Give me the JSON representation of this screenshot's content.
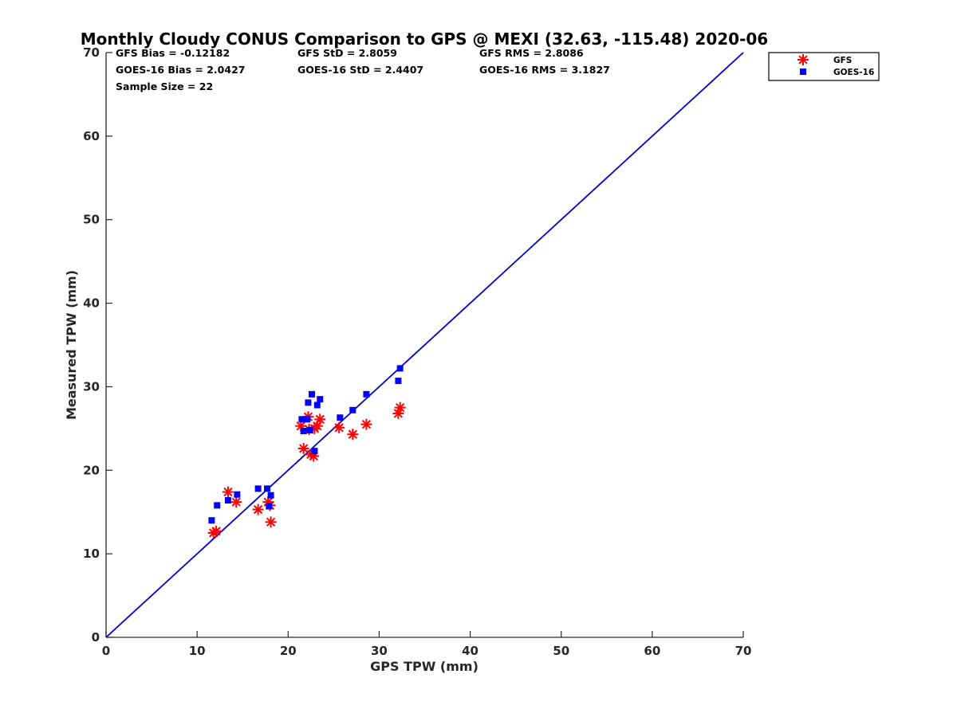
{
  "chart_data": {
    "type": "scatter",
    "title": "Monthly Cloudy CONUS Comparison to GPS @ MEXI (32.63, -115.48) 2020-06",
    "xlabel": "GPS TPW (mm)",
    "ylabel": "Measured TPW (mm)",
    "xlim": [
      0,
      70
    ],
    "ylim": [
      0,
      70
    ],
    "xticks": [
      "0",
      "10",
      "20",
      "30",
      "40",
      "50",
      "60",
      "70"
    ],
    "yticks": [
      "0",
      "10",
      "20",
      "30",
      "40",
      "50",
      "60",
      "70"
    ],
    "grid": false,
    "legend_position": "top-right, outside plot",
    "reference_line": {
      "x": [
        0,
        70
      ],
      "y": [
        0,
        70
      ],
      "color": "#0000cc"
    },
    "stats": [
      [
        "GFS Bias = -0.12182",
        "GFS StD = 2.8059",
        "GFS RMS = 2.8086"
      ],
      [
        "GOES-16 Bias = 2.0427",
        "GOES-16 StD = 2.4407",
        "GOES-16 RMS = 3.1827"
      ],
      [
        "Sample Size = 22"
      ]
    ],
    "series": [
      {
        "name": "GFS",
        "marker": "asterisk",
        "color": "#ff0000",
        "points": [
          [
            11.8,
            12.5
          ],
          [
            12.1,
            12.7
          ],
          [
            13.4,
            17.4
          ],
          [
            14.3,
            16.2
          ],
          [
            16.7,
            15.3
          ],
          [
            17.8,
            16.2
          ],
          [
            18.0,
            15.8
          ],
          [
            18.1,
            13.8
          ],
          [
            21.4,
            25.3
          ],
          [
            21.7,
            22.6
          ],
          [
            22.2,
            26.4
          ],
          [
            22.5,
            21.9
          ],
          [
            22.8,
            21.7
          ],
          [
            22.9,
            25.0
          ],
          [
            23.2,
            25.3
          ],
          [
            23.5,
            26.1
          ],
          [
            25.6,
            25.1
          ],
          [
            27.1,
            24.3
          ],
          [
            28.6,
            25.5
          ],
          [
            32.1,
            26.8
          ],
          [
            32.3,
            27.5
          ],
          [
            22.3,
            24.9
          ]
        ]
      },
      {
        "name": "GOES-16",
        "marker": "square",
        "color": "#0000ff",
        "points": [
          [
            11.6,
            14.0
          ],
          [
            12.2,
            15.8
          ],
          [
            13.4,
            16.4
          ],
          [
            14.4,
            17.1
          ],
          [
            16.7,
            17.8
          ],
          [
            17.7,
            17.8
          ],
          [
            17.9,
            15.7
          ],
          [
            18.1,
            17.0
          ],
          [
            21.5,
            26.1
          ],
          [
            21.7,
            24.7
          ],
          [
            22.1,
            26.1
          ],
          [
            22.2,
            28.1
          ],
          [
            22.4,
            24.8
          ],
          [
            22.6,
            29.1
          ],
          [
            22.9,
            22.3
          ],
          [
            23.2,
            27.8
          ],
          [
            23.5,
            28.5
          ],
          [
            25.7,
            26.3
          ],
          [
            27.1,
            27.2
          ],
          [
            28.6,
            29.1
          ],
          [
            32.1,
            30.7
          ],
          [
            32.3,
            32.2
          ]
        ]
      }
    ]
  }
}
